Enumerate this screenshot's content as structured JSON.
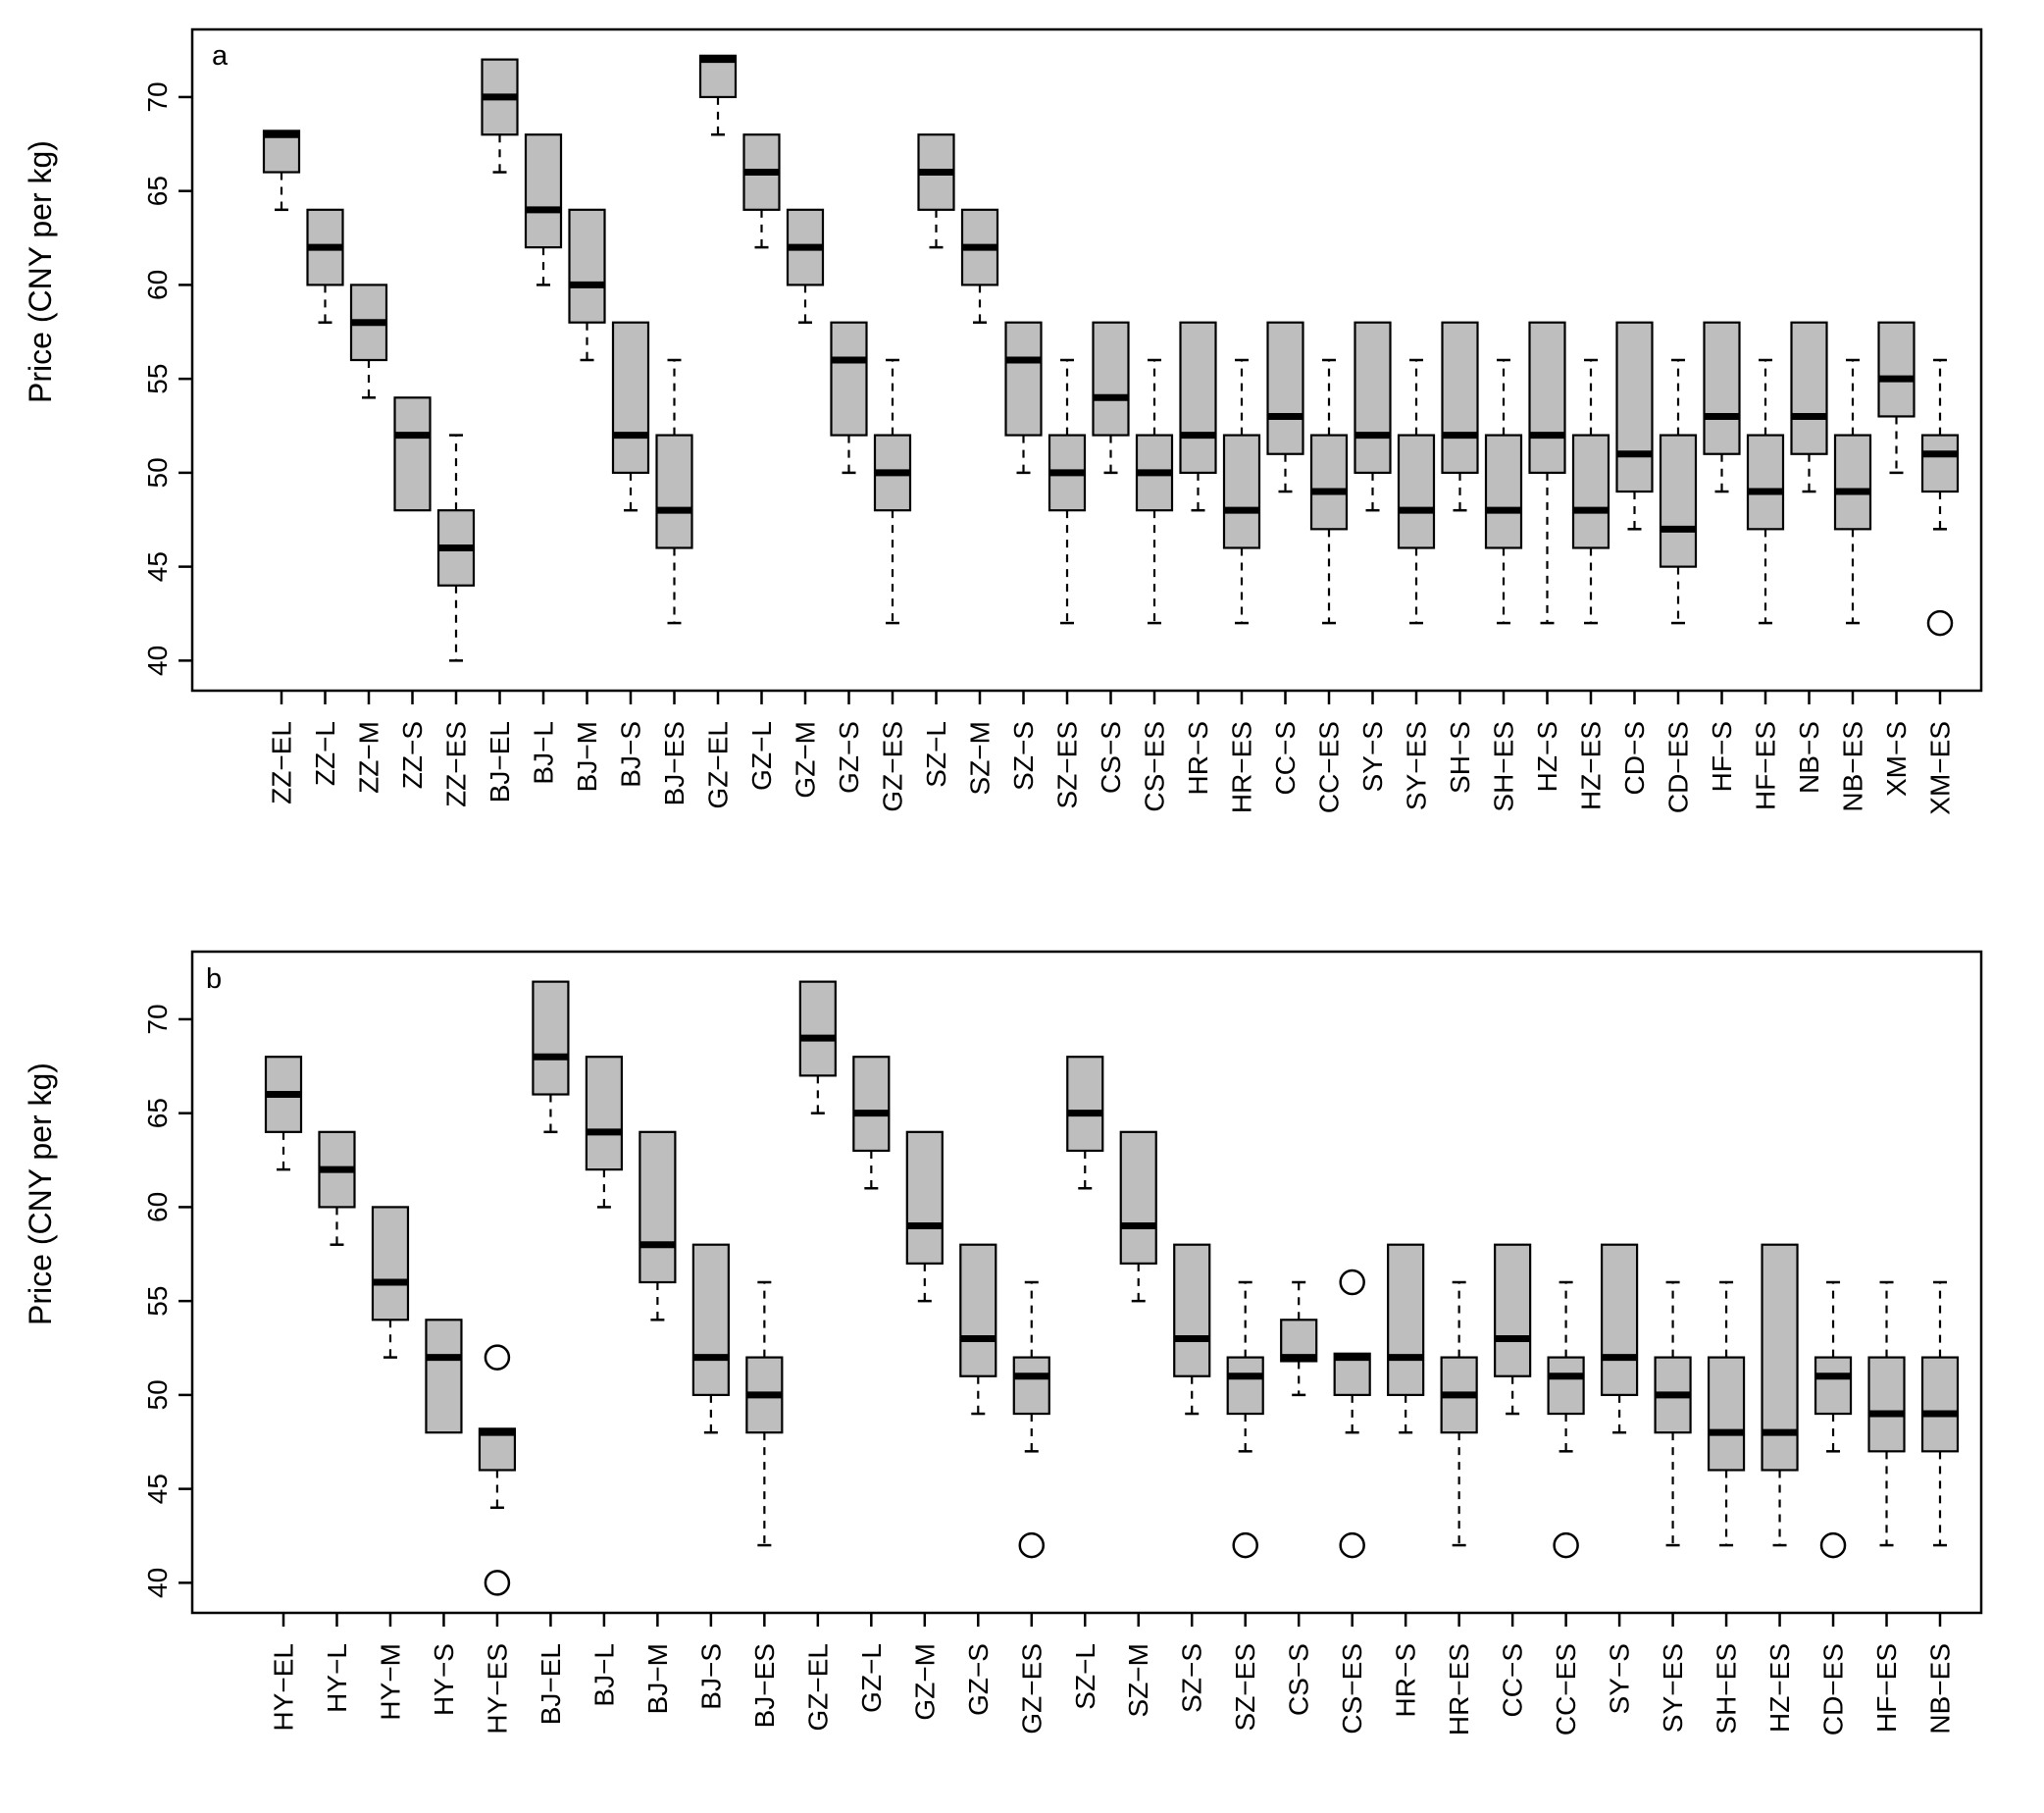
{
  "chart_data": [
    {
      "type": "boxplot",
      "panel_label": "a",
      "ylabel": "Price (CNY per kg)",
      "ylim": [
        38.4,
        73.6
      ],
      "yticks": [
        40,
        45,
        50,
        55,
        60,
        65,
        70
      ],
      "box_fill": "#bebebe",
      "boxes": [
        {
          "label": "ZZ−EL",
          "q1": 66,
          "median": 68,
          "q3": 68.2,
          "lo": 64,
          "hi": 68.2,
          "outliers": []
        },
        {
          "label": "ZZ−L",
          "q1": 60,
          "median": 62,
          "q3": 64,
          "lo": 58,
          "hi": 64,
          "outliers": []
        },
        {
          "label": "ZZ−M",
          "q1": 56,
          "median": 58,
          "q3": 60,
          "lo": 54,
          "hi": 60,
          "outliers": []
        },
        {
          "label": "ZZ−S",
          "q1": 48,
          "median": 52,
          "q3": 54,
          "lo": 48,
          "hi": 54,
          "outliers": []
        },
        {
          "label": "ZZ−ES",
          "q1": 44,
          "median": 46,
          "q3": 48,
          "lo": 40,
          "hi": 52,
          "outliers": []
        },
        {
          "label": "BJ−EL",
          "q1": 68,
          "median": 70,
          "q3": 72,
          "lo": 66,
          "hi": 72,
          "outliers": []
        },
        {
          "label": "BJ−L",
          "q1": 62,
          "median": 64,
          "q3": 68,
          "lo": 60,
          "hi": 68,
          "outliers": []
        },
        {
          "label": "BJ−M",
          "q1": 58,
          "median": 60,
          "q3": 64,
          "lo": 56,
          "hi": 64,
          "outliers": []
        },
        {
          "label": "BJ−S",
          "q1": 50,
          "median": 52,
          "q3": 58,
          "lo": 48,
          "hi": 58,
          "outliers": []
        },
        {
          "label": "BJ−ES",
          "q1": 46,
          "median": 48,
          "q3": 52,
          "lo": 42,
          "hi": 56,
          "outliers": []
        },
        {
          "label": "GZ−EL",
          "q1": 70,
          "median": 72,
          "q3": 72.2,
          "lo": 68,
          "hi": 72.2,
          "outliers": []
        },
        {
          "label": "GZ−L",
          "q1": 64,
          "median": 66,
          "q3": 68,
          "lo": 62,
          "hi": 68,
          "outliers": []
        },
        {
          "label": "GZ−M",
          "q1": 60,
          "median": 62,
          "q3": 64,
          "lo": 58,
          "hi": 64,
          "outliers": []
        },
        {
          "label": "GZ−S",
          "q1": 52,
          "median": 56,
          "q3": 58,
          "lo": 50,
          "hi": 58,
          "outliers": []
        },
        {
          "label": "GZ−ES",
          "q1": 48,
          "median": 50,
          "q3": 52,
          "lo": 42,
          "hi": 56,
          "outliers": []
        },
        {
          "label": "SZ−L",
          "q1": 64,
          "median": 66,
          "q3": 68,
          "lo": 62,
          "hi": 68,
          "outliers": []
        },
        {
          "label": "SZ−M",
          "q1": 60,
          "median": 62,
          "q3": 64,
          "lo": 58,
          "hi": 64,
          "outliers": []
        },
        {
          "label": "SZ−S",
          "q1": 52,
          "median": 56,
          "q3": 58,
          "lo": 50,
          "hi": 58,
          "outliers": []
        },
        {
          "label": "SZ−ES",
          "q1": 48,
          "median": 50,
          "q3": 52,
          "lo": 42,
          "hi": 56,
          "outliers": []
        },
        {
          "label": "CS−S",
          "q1": 52,
          "median": 54,
          "q3": 58,
          "lo": 50,
          "hi": 58,
          "outliers": []
        },
        {
          "label": "CS−ES",
          "q1": 48,
          "median": 50,
          "q3": 52,
          "lo": 42,
          "hi": 56,
          "outliers": []
        },
        {
          "label": "HR−S",
          "q1": 50,
          "median": 52,
          "q3": 58,
          "lo": 48,
          "hi": 58,
          "outliers": []
        },
        {
          "label": "HR−ES",
          "q1": 46,
          "median": 48,
          "q3": 52,
          "lo": 42,
          "hi": 56,
          "outliers": []
        },
        {
          "label": "CC−S",
          "q1": 51,
          "median": 53,
          "q3": 58,
          "lo": 49,
          "hi": 58,
          "outliers": []
        },
        {
          "label": "CC−ES",
          "q1": 47,
          "median": 49,
          "q3": 52,
          "lo": 42,
          "hi": 56,
          "outliers": []
        },
        {
          "label": "SY−S",
          "q1": 50,
          "median": 52,
          "q3": 58,
          "lo": 48,
          "hi": 58,
          "outliers": []
        },
        {
          "label": "SY−ES",
          "q1": 46,
          "median": 48,
          "q3": 52,
          "lo": 42,
          "hi": 56,
          "outliers": []
        },
        {
          "label": "SH−S",
          "q1": 50,
          "median": 52,
          "q3": 58,
          "lo": 48,
          "hi": 58,
          "outliers": []
        },
        {
          "label": "SH−ES",
          "q1": 46,
          "median": 48,
          "q3": 52,
          "lo": 42,
          "hi": 56,
          "outliers": []
        },
        {
          "label": "HZ−S",
          "q1": 50,
          "median": 52,
          "q3": 58,
          "lo": 42,
          "hi": 58,
          "outliers": []
        },
        {
          "label": "HZ−ES",
          "q1": 46,
          "median": 48,
          "q3": 52,
          "lo": 42,
          "hi": 56,
          "outliers": []
        },
        {
          "label": "CD−S",
          "q1": 49,
          "median": 51,
          "q3": 58,
          "lo": 47,
          "hi": 58,
          "outliers": []
        },
        {
          "label": "CD−ES",
          "q1": 45,
          "median": 47,
          "q3": 52,
          "lo": 42,
          "hi": 56,
          "outliers": []
        },
        {
          "label": "HF−S",
          "q1": 51,
          "median": 53,
          "q3": 58,
          "lo": 49,
          "hi": 58,
          "outliers": []
        },
        {
          "label": "HF−ES",
          "q1": 47,
          "median": 49,
          "q3": 52,
          "lo": 42,
          "hi": 56,
          "outliers": []
        },
        {
          "label": "NB−S",
          "q1": 51,
          "median": 53,
          "q3": 58,
          "lo": 49,
          "hi": 58,
          "outliers": []
        },
        {
          "label": "NB−ES",
          "q1": 47,
          "median": 49,
          "q3": 52,
          "lo": 42,
          "hi": 56,
          "outliers": []
        },
        {
          "label": "XM−S",
          "q1": 53,
          "median": 55,
          "q3": 58,
          "lo": 50,
          "hi": 58,
          "outliers": []
        },
        {
          "label": "XM−ES",
          "q1": 49,
          "median": 51,
          "q3": 52,
          "lo": 47,
          "hi": 56,
          "outliers": [
            42
          ]
        }
      ]
    },
    {
      "type": "boxplot",
      "panel_label": "b",
      "ylabel": "Price (CNY per kg)",
      "ylim": [
        38.4,
        73.6
      ],
      "yticks": [
        40,
        45,
        50,
        55,
        60,
        65,
        70
      ],
      "box_fill": "#bebebe",
      "boxes": [
        {
          "label": "HY−EL",
          "q1": 64,
          "median": 66,
          "q3": 68,
          "lo": 62,
          "hi": 68,
          "outliers": []
        },
        {
          "label": "HY−L",
          "q1": 60,
          "median": 62,
          "q3": 64,
          "lo": 58,
          "hi": 64,
          "outliers": []
        },
        {
          "label": "HY−M",
          "q1": 54,
          "median": 56,
          "q3": 60,
          "lo": 52,
          "hi": 60,
          "outliers": []
        },
        {
          "label": "HY−S",
          "q1": 48,
          "median": 52,
          "q3": 54,
          "lo": 48,
          "hi": 54,
          "outliers": []
        },
        {
          "label": "HY−ES",
          "q1": 46,
          "median": 48,
          "q3": 48.2,
          "lo": 44,
          "hi": 48.2,
          "outliers": [
            52,
            40
          ]
        },
        {
          "label": "BJ−EL",
          "q1": 66,
          "median": 68,
          "q3": 72,
          "lo": 64,
          "hi": 72,
          "outliers": []
        },
        {
          "label": "BJ−L",
          "q1": 62,
          "median": 64,
          "q3": 68,
          "lo": 60,
          "hi": 68,
          "outliers": []
        },
        {
          "label": "BJ−M",
          "q1": 56,
          "median": 58,
          "q3": 64,
          "lo": 54,
          "hi": 64,
          "outliers": []
        },
        {
          "label": "BJ−S",
          "q1": 50,
          "median": 52,
          "q3": 58,
          "lo": 48,
          "hi": 58,
          "outliers": []
        },
        {
          "label": "BJ−ES",
          "q1": 48,
          "median": 50,
          "q3": 52,
          "lo": 42,
          "hi": 56,
          "outliers": []
        },
        {
          "label": "GZ−EL",
          "q1": 67,
          "median": 69,
          "q3": 72,
          "lo": 65,
          "hi": 72,
          "outliers": []
        },
        {
          "label": "GZ−L",
          "q1": 63,
          "median": 65,
          "q3": 68,
          "lo": 61,
          "hi": 68,
          "outliers": []
        },
        {
          "label": "GZ−M",
          "q1": 57,
          "median": 59,
          "q3": 64,
          "lo": 55,
          "hi": 64,
          "outliers": []
        },
        {
          "label": "GZ−S",
          "q1": 51,
          "median": 53,
          "q3": 58,
          "lo": 49,
          "hi": 58,
          "outliers": []
        },
        {
          "label": "GZ−ES",
          "q1": 49,
          "median": 51,
          "q3": 52,
          "lo": 47,
          "hi": 56,
          "outliers": [
            42
          ]
        },
        {
          "label": "SZ−L",
          "q1": 63,
          "median": 65,
          "q3": 68,
          "lo": 61,
          "hi": 68,
          "outliers": []
        },
        {
          "label": "SZ−M",
          "q1": 57,
          "median": 59,
          "q3": 64,
          "lo": 55,
          "hi": 64,
          "outliers": []
        },
        {
          "label": "SZ−S",
          "q1": 51,
          "median": 53,
          "q3": 58,
          "lo": 49,
          "hi": 58,
          "outliers": []
        },
        {
          "label": "SZ−ES",
          "q1": 49,
          "median": 51,
          "q3": 52,
          "lo": 47,
          "hi": 56,
          "outliers": [
            42
          ]
        },
        {
          "label": "CS−S",
          "q1": 51.8,
          "median": 52,
          "q3": 54,
          "lo": 50,
          "hi": 56,
          "outliers": []
        },
        {
          "label": "CS−ES",
          "q1": 50,
          "median": 52,
          "q3": 52.2,
          "lo": 48,
          "hi": 52.2,
          "outliers": [
            56,
            42
          ]
        },
        {
          "label": "HR−S",
          "q1": 50,
          "median": 52,
          "q3": 58,
          "lo": 48,
          "hi": 58,
          "outliers": []
        },
        {
          "label": "HR−ES",
          "q1": 48,
          "median": 50,
          "q3": 52,
          "lo": 42,
          "hi": 56,
          "outliers": []
        },
        {
          "label": "CC−S",
          "q1": 51,
          "median": 53,
          "q3": 58,
          "lo": 49,
          "hi": 58,
          "outliers": []
        },
        {
          "label": "CC−ES",
          "q1": 49,
          "median": 51,
          "q3": 52,
          "lo": 47,
          "hi": 56,
          "outliers": [
            42
          ]
        },
        {
          "label": "SY−S",
          "q1": 50,
          "median": 52,
          "q3": 58,
          "lo": 48,
          "hi": 58,
          "outliers": []
        },
        {
          "label": "SY−ES",
          "q1": 48,
          "median": 50,
          "q3": 52,
          "lo": 42,
          "hi": 56,
          "outliers": []
        },
        {
          "label": "SH−ES",
          "q1": 46,
          "median": 48,
          "q3": 52,
          "lo": 42,
          "hi": 56,
          "outliers": []
        },
        {
          "label": "HZ−ES",
          "q1": 46,
          "median": 48,
          "q3": 58,
          "lo": 42,
          "hi": 58,
          "outliers": []
        },
        {
          "label": "CD−ES",
          "q1": 49,
          "median": 51,
          "q3": 52,
          "lo": 47,
          "hi": 56,
          "outliers": [
            42
          ]
        },
        {
          "label": "HF−ES",
          "q1": 47,
          "median": 49,
          "q3": 52,
          "lo": 42,
          "hi": 56,
          "outliers": []
        },
        {
          "label": "NB−ES",
          "q1": 47,
          "median": 49,
          "q3": 52,
          "lo": 42,
          "hi": 56,
          "outliers": []
        }
      ]
    }
  ]
}
